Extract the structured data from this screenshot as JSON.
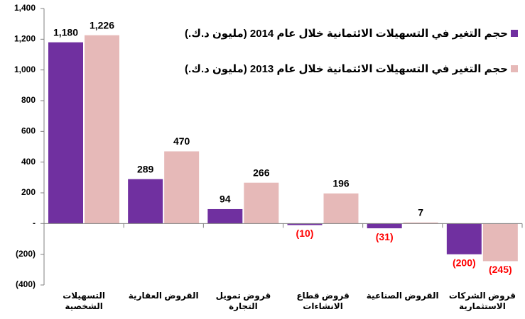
{
  "chart_data": {
    "type": "bar",
    "categories": [
      "التسهيلات الشخصية",
      "القروض العقارية",
      "قروض تمويل التجارة",
      "قروض قطاع\nالانشاءات",
      "القروض الصناعية",
      "قروض الشركات\nالاستثمارية"
    ],
    "series": [
      {
        "name": "حجم التغير في التسهيلات الائتمانية خلال عام 2014 (مليون د.ك.)",
        "color": "#7030a0",
        "values": [
          1180,
          289,
          94,
          -10,
          -31,
          -200
        ],
        "value_labels": [
          "1,180",
          "289",
          "94",
          "(10)",
          "(31)",
          "(200)"
        ]
      },
      {
        "name": "حجم التغير في التسهيلات الائتمانية خلال عام 2013 (مليون د.ك.)",
        "color": "#e6b9b8",
        "values": [
          1226,
          470,
          266,
          196,
          7,
          -245
        ],
        "value_labels": [
          "1,226",
          "470",
          "266",
          "196",
          "7",
          "(245)"
        ]
      }
    ],
    "negative_label_color": "#ff0000",
    "ylim": [
      -400,
      1400
    ],
    "yticks": [
      {
        "value": -400,
        "label": "(400)"
      },
      {
        "value": -200,
        "label": "(200)"
      },
      {
        "value": 0,
        "label": "-"
      },
      200,
      400,
      600,
      800,
      {
        "value": 1000,
        "label": "1,000"
      },
      {
        "value": 1200,
        "label": "1,200"
      },
      {
        "value": 1400,
        "label": "1,400"
      }
    ]
  }
}
